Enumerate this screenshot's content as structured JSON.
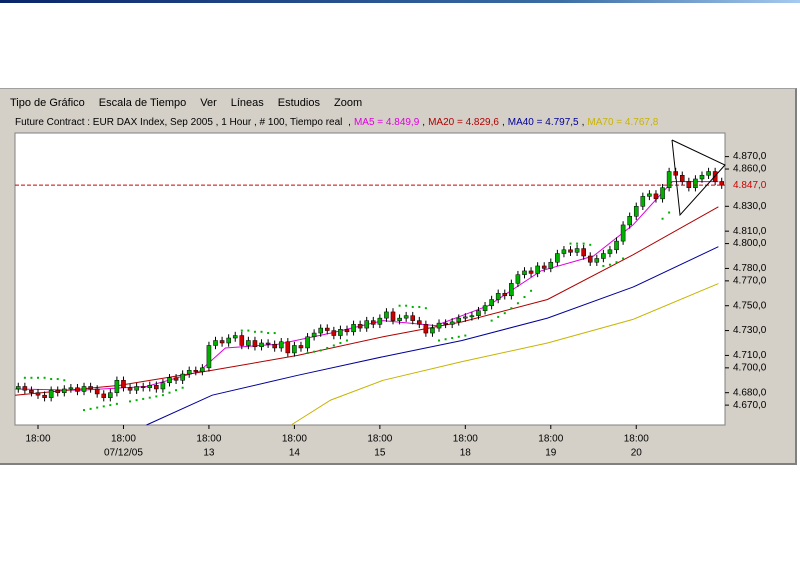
{
  "menu": {
    "items": [
      "Tipo de Gráfico",
      "Escala de Tiempo",
      "Ver",
      "Líneas",
      "Estudios",
      "Zoom"
    ]
  },
  "chart_data": {
    "type": "candlestick",
    "title": "Future Contract : EUR DAX Index, Sep 2005 , 1 Hour , # 100, Tiempo real",
    "separator": ",",
    "xlim": [
      0,
      108
    ],
    "ylim": [
      4654,
      4889
    ],
    "xticks": [
      {
        "value": 3.5,
        "label": "18:00"
      },
      {
        "value": 16.5,
        "label": "18:00"
      },
      {
        "value": 29.5,
        "label": "18:00"
      },
      {
        "value": 42.5,
        "label": "18:00"
      },
      {
        "value": 55.5,
        "label": "18:00"
      },
      {
        "value": 68.5,
        "label": "18:00"
      },
      {
        "value": 81.5,
        "label": "18:00"
      },
      {
        "value": 94.5,
        "label": "18:00"
      }
    ],
    "xtick_dates": [
      null,
      "07/12/05",
      "13",
      "14",
      "15",
      "18",
      "19",
      "20"
    ],
    "yticks": [
      {
        "value": 4870,
        "label": "4.870,0"
      },
      {
        "value": 4860,
        "label": "4.860,0"
      },
      {
        "value": 4830,
        "label": "4.830,0"
      },
      {
        "value": 4810,
        "label": "4.810,0"
      },
      {
        "value": 4800,
        "label": "4.800,0"
      },
      {
        "value": 4780,
        "label": "4.780,0"
      },
      {
        "value": 4770,
        "label": "4.770,0"
      },
      {
        "value": 4750,
        "label": "4.750,0"
      },
      {
        "value": 4730,
        "label": "4.730,0"
      },
      {
        "value": 4710,
        "label": "4.710,0"
      },
      {
        "value": 4700,
        "label": "4.700,0"
      },
      {
        "value": 4680,
        "label": "4.680,0"
      },
      {
        "value": 4670,
        "label": "4.670,0"
      }
    ],
    "price_line": {
      "value": 4847,
      "label": "4.847,0",
      "color": "#cc0000"
    },
    "candles": {
      "up_color": "#00b000",
      "down_color": "#cc0000",
      "open": [
        4683,
        4685,
        4682,
        4680,
        4678,
        4676,
        4682,
        4680,
        4683,
        4684,
        4681,
        4685,
        4683,
        4679,
        4676,
        4680,
        4690,
        4684,
        4682,
        4685,
        4684,
        4686,
        4683,
        4688,
        4692,
        4690,
        4695,
        4698,
        4697,
        4700,
        4718,
        4722,
        4720,
        4724,
        4726,
        4718,
        4722,
        4717,
        4720,
        4719,
        4716,
        4721,
        4712,
        4718,
        4716,
        4725,
        4728,
        4732,
        4730,
        4726,
        4731,
        4729,
        4735,
        4732,
        4738,
        4735,
        4740,
        4745,
        4738,
        4740,
        4742,
        4738,
        4735,
        4728,
        4732,
        4736,
        4735,
        4737,
        4740,
        4741,
        4742,
        4746,
        4750,
        4755,
        4760,
        4758,
        4768,
        4775,
        4778,
        4776,
        4782,
        4780,
        4785,
        4792,
        4795,
        4793,
        4796,
        4790,
        4785,
        4788,
        4792,
        4795,
        4802,
        4815,
        4822,
        4830,
        4838,
        4840,
        4836,
        4845,
        4858,
        4855,
        4850,
        4845,
        4852,
        4855,
        4858,
        4850
      ],
      "high": [
        4688,
        4688,
        4685,
        4683,
        4681,
        4685,
        4685,
        4686,
        4687,
        4687,
        4688,
        4688,
        4686,
        4682,
        4683,
        4693,
        4693,
        4687,
        4688,
        4688,
        4689,
        4689,
        4691,
        4695,
        4695,
        4698,
        4701,
        4701,
        4703,
        4721,
        4725,
        4725,
        4727,
        4729,
        4729,
        4725,
        4725,
        4723,
        4723,
        4722,
        4724,
        4724,
        4721,
        4721,
        4728,
        4731,
        4735,
        4735,
        4733,
        4734,
        4734,
        4738,
        4738,
        4741,
        4741,
        4743,
        4748,
        4748,
        4743,
        4745,
        4745,
        4741,
        4738,
        4735,
        4739,
        4739,
        4740,
        4743,
        4744,
        4745,
        4749,
        4753,
        4758,
        4763,
        4763,
        4771,
        4778,
        4781,
        4781,
        4785,
        4785,
        4788,
        4795,
        4798,
        4798,
        4799,
        4799,
        4793,
        4791,
        4795,
        4798,
        4805,
        4818,
        4825,
        4833,
        4841,
        4843,
        4843,
        4848,
        4861,
        4861,
        4858,
        4853,
        4855,
        4858,
        4861,
        4861,
        4853
      ],
      "low": [
        4680,
        4679,
        4677,
        4675,
        4673,
        4673,
        4677,
        4677,
        4680,
        4678,
        4678,
        4680,
        4676,
        4673,
        4673,
        4677,
        4681,
        4679,
        4679,
        4681,
        4681,
        4680,
        4680,
        4685,
        4687,
        4687,
        4692,
        4694,
        4694,
        4697,
        4715,
        4717,
        4717,
        4721,
        4715,
        4715,
        4714,
        4714,
        4716,
        4713,
        4713,
        4709,
        4709,
        4713,
        4713,
        4722,
        4725,
        4727,
        4723,
        4723,
        4726,
        4726,
        4729,
        4729,
        4732,
        4732,
        4737,
        4735,
        4735,
        4737,
        4735,
        4732,
        4725,
        4725,
        4729,
        4732,
        4732,
        4734,
        4737,
        4738,
        4739,
        4743,
        4747,
        4752,
        4755,
        4755,
        4765,
        4772,
        4773,
        4773,
        4777,
        4777,
        4782,
        4789,
        4790,
        4790,
        4787,
        4782,
        4782,
        4785,
        4789,
        4792,
        4799,
        4812,
        4819,
        4827,
        4835,
        4833,
        4833,
        4842,
        4852,
        4847,
        4842,
        4842,
        4849,
        4852,
        4847,
        4844
      ],
      "close": [
        4685,
        4682,
        4680,
        4678,
        4676,
        4682,
        4680,
        4683,
        4684,
        4681,
        4685,
        4683,
        4679,
        4676,
        4680,
        4690,
        4684,
        4682,
        4685,
        4684,
        4686,
        4683,
        4688,
        4692,
        4690,
        4695,
        4698,
        4697,
        4700,
        4718,
        4722,
        4720,
        4724,
        4726,
        4718,
        4722,
        4717,
        4720,
        4719,
        4716,
        4721,
        4712,
        4718,
        4716,
        4725,
        4728,
        4732,
        4730,
        4726,
        4731,
        4729,
        4735,
        4732,
        4738,
        4735,
        4740,
        4745,
        4738,
        4740,
        4742,
        4738,
        4735,
        4728,
        4732,
        4736,
        4735,
        4737,
        4740,
        4741,
        4742,
        4746,
        4750,
        4755,
        4760,
        4758,
        4768,
        4775,
        4778,
        4776,
        4782,
        4780,
        4785,
        4792,
        4795,
        4793,
        4796,
        4790,
        4785,
        4788,
        4792,
        4795,
        4802,
        4815,
        4822,
        4830,
        4838,
        4840,
        4836,
        4845,
        4858,
        4855,
        4850,
        4845,
        4852,
        4855,
        4858,
        4850,
        4847
      ]
    },
    "series": [
      {
        "name": "MA5 = 4.849,9",
        "color": "#e000e0",
        "x": [
          0,
          10,
          20,
          28,
          32,
          40,
          48,
          56,
          64,
          72,
          80,
          88,
          94,
          100,
          107
        ],
        "values": [
          4683,
          4682,
          4685,
          4697,
          4716,
          4719,
          4728,
          4738,
          4734,
          4750,
          4778,
          4790,
          4815,
          4850,
          4849.9
        ]
      },
      {
        "name": "MA20 = 4.829,6",
        "color": "#b00000",
        "x": [
          0,
          16,
          30,
          43,
          56,
          68,
          81,
          94,
          107
        ],
        "values": [
          4678,
          4686,
          4698,
          4710,
          4725,
          4737,
          4755,
          4791,
          4829.6
        ]
      },
      {
        "name": "MA40 = 4.797,5",
        "color": "#000099",
        "x": [
          20,
          30,
          43,
          56,
          68,
          81,
          94,
          107
        ],
        "values": [
          4654,
          4678,
          4694,
          4709,
          4722,
          4740,
          4765,
          4797.5
        ]
      },
      {
        "name": "MA70 = 4.767,8",
        "color": "#c8b400",
        "x": [
          42,
          48,
          56,
          68,
          81,
          94,
          107
        ],
        "values": [
          4654,
          4674,
          4690,
          4705,
          4720,
          4739,
          4767.8
        ]
      }
    ],
    "sar": {
      "color": "#00b000",
      "x": [
        1,
        2,
        3,
        4,
        5,
        6,
        7,
        10,
        11,
        12,
        13,
        14,
        15,
        17,
        18,
        19,
        20,
        21,
        22,
        23,
        24,
        25,
        34,
        35,
        36,
        37,
        38,
        39,
        44,
        45,
        46,
        47,
        48,
        49,
        50,
        58,
        59,
        60,
        61,
        62,
        64,
        65,
        66,
        67,
        68,
        72,
        73,
        74,
        75,
        76,
        77,
        78,
        84,
        85,
        86,
        87,
        89,
        90,
        91,
        92,
        98,
        99
      ],
      "values": [
        4692,
        4692,
        4692,
        4692,
        4691,
        4691,
        4690,
        4666,
        4667,
        4668,
        4669,
        4670,
        4671,
        4673,
        4674,
        4675,
        4676,
        4677,
        4678,
        4680,
        4682,
        4684,
        4730,
        4730,
        4729,
        4729,
        4728,
        4728,
        4712,
        4713,
        4714,
        4716,
        4718,
        4720,
        4722,
        4750,
        4750,
        4749,
        4749,
        4748,
        4722,
        4723,
        4724,
        4725,
        4726,
        4738,
        4741,
        4744,
        4748,
        4752,
        4757,
        4762,
        4800,
        4800,
        4800,
        4799,
        4782,
        4783,
        4785,
        4788,
        4820,
        4825
      ]
    }
  }
}
